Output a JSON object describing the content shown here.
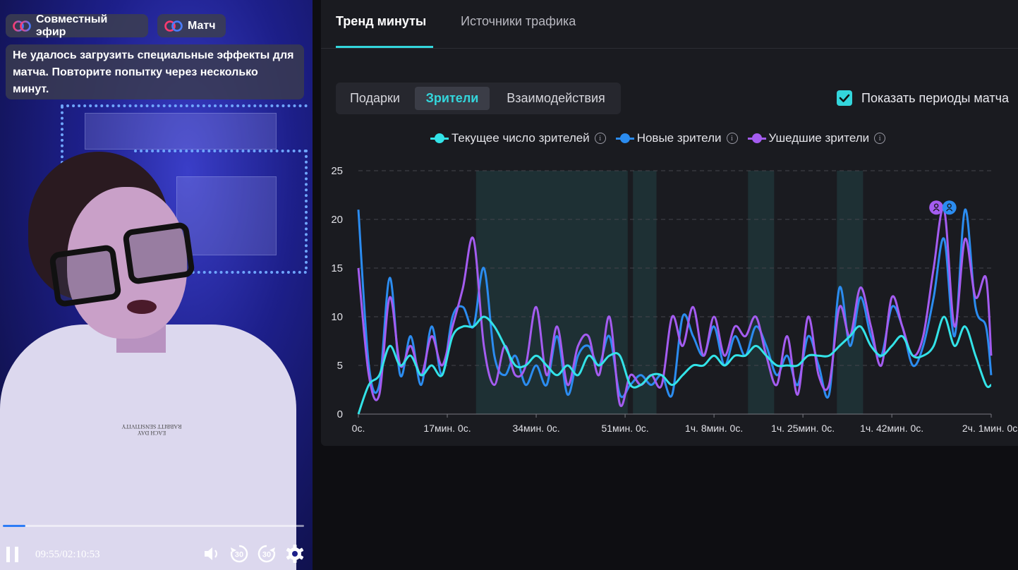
{
  "video": {
    "pills": {
      "coop_label": "Совместный эфир",
      "match_label": "Матч"
    },
    "error_message": "Не удалось загрузить специальные эффекты для матча. Повторите попытку через несколько минут.",
    "shirt_text_line1": "RABBITT SENSITIVITY",
    "shirt_text_line2": "EACH DAY",
    "progress_fraction": 0.075,
    "time_label": "09:55/02:10:53",
    "rewind_label": "30",
    "forward_label": "30",
    "icons": [
      "pause-icon",
      "volume-icon",
      "rewind-30-icon",
      "forward-30-icon",
      "settings-icon"
    ]
  },
  "panel": {
    "tabs": [
      {
        "label": "Тренд минуты",
        "active": true
      },
      {
        "label": "Источники трафика",
        "active": false
      }
    ],
    "segments": [
      {
        "label": "Подарки",
        "active": false
      },
      {
        "label": "Зрители",
        "active": true
      },
      {
        "label": "Взаимодействия",
        "active": false
      }
    ],
    "match_toggle_label": "Показать периоды матча",
    "match_toggle_checked": true,
    "accent_color": "#33d6dc"
  },
  "chart_data": {
    "type": "line",
    "title": "",
    "xlabel": "",
    "ylabel": "",
    "ylim": [
      0,
      25
    ],
    "yticks": [
      "0",
      "5",
      "10",
      "15",
      "20",
      "25"
    ],
    "xlim_minutes": [
      0,
      121
    ],
    "xticks": [
      {
        "label": "0с.",
        "minute": 0
      },
      {
        "label": "17мин. 0с.",
        "minute": 17
      },
      {
        "label": "34мин. 0с.",
        "minute": 34
      },
      {
        "label": "51мин. 0с.",
        "minute": 51
      },
      {
        "label": "1ч. 8мин. 0с.",
        "minute": 68
      },
      {
        "label": "1ч. 25мин. 0с.",
        "minute": 85
      },
      {
        "label": "1ч. 42мин. 0с.",
        "minute": 102
      },
      {
        "label": "2ч. 1мин. 0с.",
        "minute": 121
      }
    ],
    "grid": "horizontal-dashed",
    "legend": "top-center",
    "match_periods_minutes": [
      [
        22.5,
        51.5
      ],
      [
        52.5,
        57
      ],
      [
        74.5,
        79.5
      ],
      [
        91.5,
        96.5
      ]
    ],
    "series": [
      {
        "name": "Текущее число зрителей",
        "color": "#33e3e8",
        "x": [
          0,
          2,
          4,
          6,
          8,
          10,
          12,
          14,
          16,
          18,
          20,
          22,
          24,
          26,
          28,
          30,
          32,
          34,
          36,
          38,
          40,
          42,
          44,
          46,
          48,
          50,
          52,
          54,
          56,
          58,
          60,
          62,
          64,
          66,
          68,
          70,
          72,
          74,
          76,
          78,
          80,
          82,
          84,
          86,
          88,
          90,
          92,
          94,
          96,
          98,
          100,
          102,
          104,
          106,
          108,
          110,
          112,
          114,
          116,
          118,
          120,
          121
        ],
        "values": [
          0,
          3,
          4,
          7,
          5,
          6,
          4,
          5,
          4,
          8,
          9,
          9,
          10,
          9,
          7,
          5,
          5,
          6,
          5,
          4,
          5,
          4,
          6,
          5,
          6,
          6,
          3,
          3,
          4,
          4,
          3,
          4,
          5,
          5,
          6,
          5,
          6,
          6,
          7,
          6,
          5,
          5,
          5,
          6,
          6,
          6,
          7,
          8,
          9,
          7,
          6,
          7,
          8,
          6,
          6,
          7,
          10,
          7,
          9,
          6,
          3,
          3
        ]
      },
      {
        "name": "Новые зрители",
        "color": "#2b8cf0",
        "x": [
          0,
          2,
          4,
          6,
          8,
          10,
          12,
          14,
          16,
          18,
          20,
          22,
          24,
          26,
          28,
          30,
          32,
          34,
          36,
          38,
          40,
          42,
          44,
          46,
          48,
          50,
          52,
          54,
          56,
          58,
          60,
          62,
          64,
          66,
          68,
          70,
          72,
          74,
          76,
          78,
          80,
          82,
          84,
          86,
          88,
          90,
          92,
          94,
          96,
          98,
          100,
          102,
          104,
          106,
          108,
          110,
          112,
          114,
          116,
          118,
          120,
          121
        ],
        "values": [
          21,
          5,
          3,
          14,
          4,
          8,
          3,
          9,
          4,
          10,
          11,
          9,
          15,
          6,
          4,
          6,
          3,
          5,
          3,
          8,
          2,
          6,
          7,
          5,
          8,
          2,
          3,
          4,
          3,
          4,
          2,
          10,
          8,
          6,
          9,
          5,
          8,
          6,
          9,
          7,
          4,
          6,
          3,
          8,
          5,
          2,
          13,
          7,
          12,
          8,
          6,
          11,
          9,
          5,
          7,
          12,
          18,
          8,
          21,
          11,
          9,
          4
        ]
      },
      {
        "name": "Ушедшие зрители",
        "color": "#a45cf0",
        "x": [
          0,
          2,
          4,
          6,
          8,
          10,
          12,
          14,
          16,
          18,
          20,
          22,
          24,
          26,
          28,
          30,
          32,
          34,
          36,
          38,
          40,
          42,
          44,
          46,
          48,
          50,
          52,
          54,
          56,
          58,
          60,
          62,
          64,
          66,
          68,
          70,
          72,
          74,
          76,
          78,
          80,
          82,
          84,
          86,
          88,
          90,
          92,
          94,
          96,
          98,
          100,
          102,
          104,
          106,
          108,
          110,
          112,
          114,
          116,
          118,
          120,
          121
        ],
        "values": [
          15,
          4,
          2,
          12,
          5,
          7,
          4,
          8,
          5,
          9,
          13,
          18,
          7,
          3,
          7,
          4,
          5,
          11,
          4,
          9,
          3,
          7,
          8,
          4,
          10,
          1,
          4,
          3,
          4,
          3,
          10,
          7,
          11,
          6,
          10,
          6,
          9,
          8,
          10,
          6,
          3,
          8,
          2,
          10,
          4,
          3,
          11,
          8,
          13,
          9,
          5,
          12,
          9,
          6,
          8,
          15,
          21,
          9,
          18,
          12,
          14,
          6
        ]
      }
    ],
    "peak_markers": [
      {
        "series": "Ушедшие зрители",
        "minute": 110.5,
        "value": 21
      },
      {
        "series": "Новые зрители",
        "minute": 113,
        "value": 21
      }
    ]
  }
}
